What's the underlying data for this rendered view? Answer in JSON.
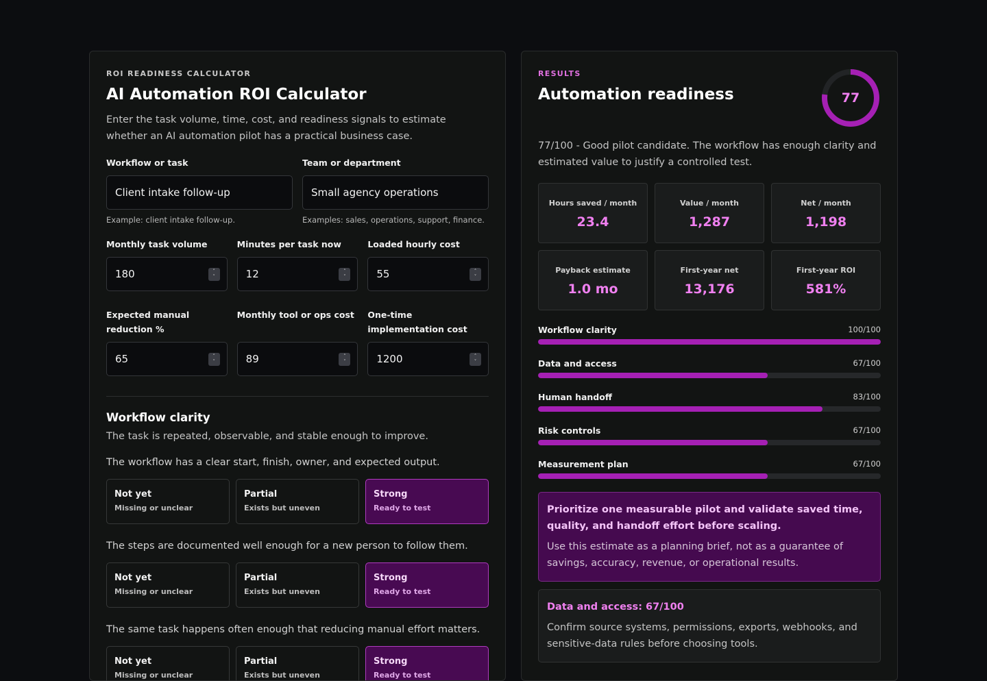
{
  "calculator": {
    "eyebrow": "ROI READINESS CALCULATOR",
    "title": "AI Automation ROI Calculator",
    "description": "Enter the task volume, time, cost, and readiness signals to estimate whether an AI automation pilot has a practical business case.",
    "workflow": {
      "label": "Workflow or task",
      "value": "Client intake follow-up",
      "hint": "Example: client intake follow-up."
    },
    "team": {
      "label": "Team or department",
      "value": "Small agency operations",
      "hint": "Examples: sales, operations, support, finance."
    },
    "numbers": [
      {
        "label": "Monthly task volume",
        "value": "180"
      },
      {
        "label": "Minutes per task now",
        "value": "12"
      },
      {
        "label": "Loaded hourly cost",
        "value": "55"
      },
      {
        "label": "Expected manual reduction %",
        "value": "65"
      },
      {
        "label": "Monthly tool or ops cost",
        "value": "89"
      },
      {
        "label": "One-time implementation cost",
        "value": "1200"
      }
    ],
    "section": {
      "title": "Workflow clarity",
      "description": "The task is repeated, observable, and stable enough to improve.",
      "questions": [
        {
          "text": "The workflow has a clear start, finish, owner, and expected output.",
          "selected": 2
        },
        {
          "text": "The steps are documented well enough for a new person to follow them.",
          "selected": 2
        },
        {
          "text": "The same task happens often enough that reducing manual effort matters.",
          "selected": 2
        }
      ],
      "options": [
        {
          "title": "Not yet",
          "sub": "Missing or unclear"
        },
        {
          "title": "Partial",
          "sub": "Exists but uneven"
        },
        {
          "title": "Strong",
          "sub": "Ready to test"
        }
      ]
    }
  },
  "results": {
    "eyebrow": "RESULTS",
    "title": "Automation readiness",
    "score": 77,
    "score_label": "77",
    "summary": "77/100 - Good pilot candidate. The workflow has enough clarity and estimated value to justify a controlled test.",
    "metrics": [
      {
        "label": "Hours saved / month",
        "value": "23.4"
      },
      {
        "label": "Value / month",
        "value": "1,287"
      },
      {
        "label": "Net / month",
        "value": "1,198"
      },
      {
        "label": "Payback estimate",
        "value": "1.0 mo"
      },
      {
        "label": "First-year net",
        "value": "13,176"
      },
      {
        "label": "First-year ROI",
        "value": "581%"
      }
    ],
    "bars": [
      {
        "name": "Workflow clarity",
        "score": 100,
        "score_label": "100/100"
      },
      {
        "name": "Data and access",
        "score": 67,
        "score_label": "67/100"
      },
      {
        "name": "Human handoff",
        "score": 83,
        "score_label": "83/100"
      },
      {
        "name": "Risk controls",
        "score": 67,
        "score_label": "67/100"
      },
      {
        "name": "Measurement plan",
        "score": 67,
        "score_label": "67/100"
      }
    ],
    "callout": {
      "title": "Prioritize one measurable pilot and validate saved time, quality, and handoff effort before scaling.",
      "body": "Use this estimate as a planning brief, not as a guarantee of savings, accuracy, revenue, or operational results."
    },
    "card": {
      "title": "Data and access: 67/100",
      "body": "Confirm source systems, permissions, exports, webhooks, and sensitive-data rules before choosing tools."
    }
  },
  "colors": {
    "accent": "#a520b4",
    "accent_text": "#f080f0",
    "selected_bg": "#480a52",
    "ring_track": "#222426"
  }
}
